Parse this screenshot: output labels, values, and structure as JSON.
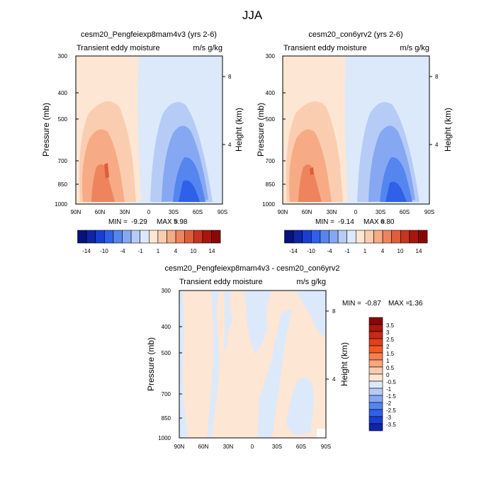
{
  "figure_title": "JJA",
  "chart_data": [
    {
      "type": "heatmap",
      "title": "cesm20_Pengfeiexp8mam4v3 (yrs 2-6)",
      "subtitle_left": "Transient eddy moisture",
      "subtitle_right": "m/s g/kg",
      "ylabel": "Pressure (mb)",
      "ylabel_right": "Height (km)",
      "x_ticks": [
        "90N",
        "60N",
        "30N",
        "0",
        "30S",
        "60S",
        "90S"
      ],
      "y_ticks": [
        "300",
        "400",
        "500",
        "700",
        "850",
        "1000"
      ],
      "y_ticks_right": [
        "8",
        "4"
      ],
      "min_label": "MIN = ",
      "min_value": "-9.29",
      "max_label": "MAX = ",
      "max_value": "5.98",
      "colorbar_labels": [
        "-14",
        "-10",
        "-4",
        "-1",
        "1",
        "4",
        "10",
        "14"
      ],
      "colorbar_colors": [
        "#08127a",
        "#0f24a6",
        "#1a3dd2",
        "#2f60ea",
        "#5585ee",
        "#86a8f2",
        "#b6ccf7",
        "#dce9fb",
        "#fde6d4",
        "#fbcdb0",
        "#f6ab85",
        "#ee845e",
        "#e05d3a",
        "#c73521",
        "#a8160e",
        "#8a0707"
      ]
    },
    {
      "type": "heatmap",
      "title": "cesm20_con6yrv2 (yrs 2-6)",
      "subtitle_left": "Transient eddy moisture",
      "subtitle_right": "m/s g/kg",
      "ylabel": "Pressure (mb)",
      "ylabel_right": "Height (km)",
      "x_ticks": [
        "90N",
        "60N",
        "30N",
        "0",
        "30S",
        "60S",
        "90S"
      ],
      "y_ticks": [
        "300",
        "400",
        "500",
        "700",
        "850",
        "1000"
      ],
      "y_ticks_right": [
        "8",
        "4"
      ],
      "min_label": "MIN = ",
      "min_value": "-9.14",
      "max_label": "MAX = ",
      "max_value": "6.80",
      "colorbar_labels": [
        "-14",
        "-10",
        "-4",
        "-1",
        "1",
        "4",
        "10",
        "14"
      ],
      "colorbar_colors": [
        "#08127a",
        "#0f24a6",
        "#1a3dd2",
        "#2f60ea",
        "#5585ee",
        "#86a8f2",
        "#b6ccf7",
        "#dce9fb",
        "#fde6d4",
        "#fbcdb0",
        "#f6ab85",
        "#ee845e",
        "#e05d3a",
        "#c73521",
        "#a8160e",
        "#8a0707"
      ]
    },
    {
      "type": "heatmap",
      "title": "cesm20_Pengfeiexp8mam4v3 - cesm20_con6yrv2",
      "subtitle_left": "Transient eddy moisture",
      "subtitle_right": "m/s g/kg",
      "ylabel": "Pressure (mb)",
      "ylabel_right": "Height (km)",
      "x_ticks": [
        "90N",
        "60N",
        "30N",
        "0",
        "30S",
        "60S",
        "90S"
      ],
      "y_ticks": [
        "300",
        "400",
        "500",
        "700",
        "850",
        "1000"
      ],
      "y_ticks_right": [
        "8",
        "4"
      ],
      "min_label": "MIN = ",
      "min_value": "-0.87",
      "max_label": "MAX = ",
      "max_value": "1.36",
      "colorbar_labels": [
        "3.5",
        "3",
        "2.5",
        "2",
        "1.5",
        "1",
        "0.5",
        "0",
        "-0.5",
        "-1",
        "-1.5",
        "-2",
        "-2.5",
        "-3",
        "-3.5"
      ],
      "colorbar_colors": [
        "#8a0707",
        "#a8160e",
        "#c72a18",
        "#e0401c",
        "#f15a24",
        "#f6804f",
        "#f9a57d",
        "#fbcbb0",
        "#fde6d4",
        "#dce9fb",
        "#b6ccf7",
        "#86a8f2",
        "#5585ee",
        "#2f60ea",
        "#1a3dd2",
        "#0f24a6"
      ]
    }
  ]
}
